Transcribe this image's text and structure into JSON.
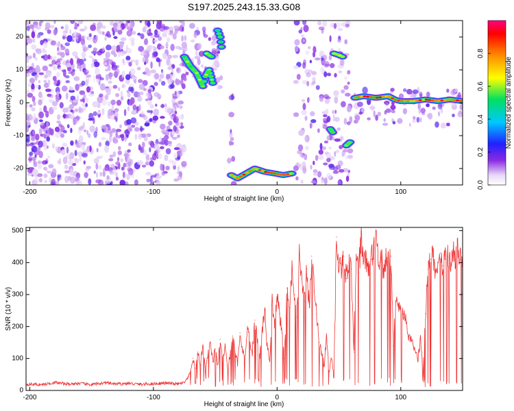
{
  "title": "S197.2025.243.15.33.G08",
  "chart_data": [
    {
      "type": "heatmap",
      "xlabel": "Height of straight line (km)",
      "ylabel": "Frequency (Hz)",
      "xlim": [
        -203,
        150
      ],
      "ylim": [
        -25,
        25
      ],
      "xticks": [
        -200,
        -100,
        0,
        100
      ],
      "yticks": [
        -20,
        -10,
        0,
        10,
        20
      ],
      "colorbar": {
        "label": "Normalized spectral amplitude",
        "range": [
          0,
          1
        ],
        "ticks": [
          "0.0",
          "0.2",
          "0.4",
          "0.6",
          "0.8"
        ],
        "tick_values": [
          0,
          0.2,
          0.4,
          0.6,
          0.8
        ]
      },
      "grid": false,
      "regions": [
        {
          "x": [
            -203,
            -75
          ],
          "y": [
            -25,
            25
          ],
          "pattern": "scattered purple noise"
        },
        {
          "x": [
            -75,
            -45
          ],
          "y": [
            3,
            24
          ],
          "pattern": "speckled"
        },
        {
          "x": [
            -40,
            -35
          ],
          "y": [
            -25,
            3
          ],
          "pattern": "faint streaks"
        },
        {
          "x": [
            15,
            45
          ],
          "y": [
            -25,
            25
          ],
          "pattern": "speckled"
        },
        {
          "x": [
            45,
            60
          ],
          "y": [
            -25,
            25
          ],
          "pattern": "speckled"
        },
        {
          "x": [
            62,
            150
          ],
          "y": [
            -7,
            4
          ],
          "pattern": "faint band"
        }
      ],
      "ridges": [
        {
          "points": [
            [
              -75,
              14
            ],
            [
              -70,
              11
            ],
            [
              -65,
              9
            ],
            [
              -60,
              5
            ],
            [
              -58,
              8
            ],
            [
              -55,
              10
            ],
            [
              -52,
              6
            ]
          ],
          "peak": 0.65
        },
        {
          "points": [
            [
              -57,
              15
            ],
            [
              -53,
              14
            ]
          ],
          "peak": 0.7
        },
        {
          "points": [
            [
              -48,
              22
            ],
            [
              -46,
              20
            ],
            [
              -45,
              17
            ]
          ],
          "peak": 0.6
        },
        {
          "points": [
            [
              -37,
              -22
            ],
            [
              -32,
              -23
            ],
            [
              -25,
              -21.5
            ],
            [
              -18,
              -20
            ],
            [
              -10,
              -21
            ],
            [
              -2,
              -21.5
            ],
            [
              5,
              -22
            ],
            [
              12,
              -21.5
            ]
          ],
          "peak": 0.95
        },
        {
          "points": [
            [
              43,
              -8
            ],
            [
              45,
              -9
            ]
          ],
          "peak": 0.55
        },
        {
          "points": [
            [
              46,
              15
            ],
            [
              50,
              14.5
            ],
            [
              53,
              14
            ]
          ],
          "peak": 0.75
        },
        {
          "points": [
            [
              56,
              -13
            ],
            [
              59,
              -12
            ]
          ],
          "peak": 0.75
        },
        {
          "points": [
            [
              63,
              1.5
            ],
            [
              70,
              2
            ],
            [
              80,
              1.5
            ],
            [
              90,
              2
            ],
            [
              95,
              1
            ],
            [
              100,
              0.5
            ],
            [
              110,
              0.5
            ],
            [
              120,
              1
            ],
            [
              130,
              0.5
            ],
            [
              140,
              1
            ],
            [
              150,
              0.5
            ]
          ],
          "peak": 0.95
        }
      ]
    },
    {
      "type": "line",
      "xlabel": "Height of straight line (km)",
      "ylabel": "SNR (10 * v/v)",
      "xlim": [
        -203,
        150
      ],
      "ylim": [
        0,
        510
      ],
      "xticks": [
        -200,
        -100,
        0,
        100
      ],
      "yticks": [
        0,
        100,
        200,
        300,
        400,
        500
      ],
      "grid": false,
      "series": [
        {
          "color": "#ee3333",
          "x": [
            -203,
            -190,
            -180,
            -170,
            -160,
            -150,
            -140,
            -130,
            -120,
            -110,
            -100,
            -90,
            -80,
            -75,
            -72,
            -70,
            -68,
            -66,
            -64,
            -62,
            -60,
            -58,
            -56,
            -54,
            -52,
            -50,
            -48,
            -46,
            -44,
            -42,
            -40,
            -38,
            -36,
            -34,
            -32,
            -30,
            -28,
            -26,
            -24,
            -22,
            -20,
            -18,
            -16,
            -14,
            -12,
            -10,
            -8,
            -6,
            -4,
            -2,
            0,
            2,
            4,
            6,
            8,
            10,
            12,
            14,
            16,
            18,
            20,
            22,
            24,
            26,
            28,
            30,
            32,
            34,
            36,
            38,
            40,
            42,
            44,
            46,
            48,
            50,
            52,
            54,
            56,
            58,
            60,
            62,
            64,
            66,
            68,
            70,
            72,
            74,
            76,
            78,
            80,
            82,
            84,
            86,
            88,
            90,
            92,
            94,
            96,
            98,
            100,
            102,
            104,
            106,
            108,
            110,
            112,
            114,
            116,
            118,
            120,
            122,
            124,
            126,
            128,
            130,
            132,
            134,
            136,
            138,
            140,
            142,
            144,
            146,
            148,
            150
          ],
          "y": [
            20,
            18,
            25,
            20,
            22,
            18,
            24,
            20,
            22,
            19,
            21,
            23,
            20,
            24,
            40,
            60,
            100,
            70,
            120,
            80,
            140,
            60,
            110,
            150,
            90,
            130,
            80,
            160,
            100,
            140,
            70,
            110,
            170,
            120,
            90,
            180,
            130,
            100,
            200,
            150,
            120,
            220,
            160,
            110,
            190,
            250,
            140,
            90,
            280,
            200,
            300,
            240,
            180,
            100,
            320,
            260,
            380,
            300,
            230,
            430,
            350,
            280,
            380,
            260,
            420,
            310,
            240,
            150,
            120,
            80,
            170,
            60,
            100,
            40,
            480,
            400,
            380,
            420,
            350,
            400,
            380,
            120,
            410,
            370,
            480,
            420,
            400,
            380,
            410,
            440,
            500,
            400,
            430,
            380,
            410,
            400,
            420,
            140,
            280,
            260,
            260,
            240,
            220,
            170,
            160,
            140,
            120,
            100,
            160,
            60,
            240,
            380,
            410,
            420,
            380,
            400,
            430,
            390,
            410,
            420,
            400,
            440,
            410,
            450,
            410,
            420
          ]
        }
      ]
    }
  ]
}
